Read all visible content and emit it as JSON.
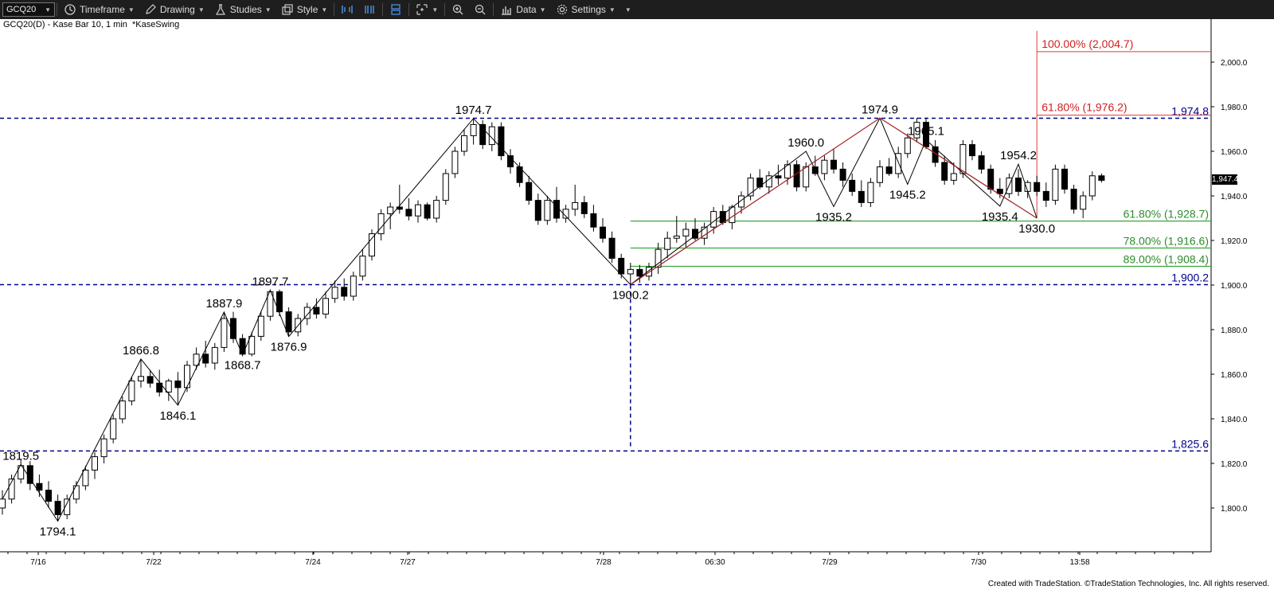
{
  "toolbar": {
    "symbol": "GCQ20",
    "timeframe": "Timeframe",
    "drawing": "Drawing",
    "studies": "Studies",
    "style": "Style",
    "data": "Data",
    "settings": "Settings"
  },
  "subtitle": {
    "symbol_desc": "GCQ20(D) - Kase Bar 10, 1 min",
    "study": "*KaseSwing"
  },
  "footer": "Created with TradeStation. ©TradeStation Technologies, Inc. All rights reserved.",
  "colors": {
    "up": "#ffffff",
    "down": "#000000",
    "level_line": "#00008b",
    "fib_green": "#3aa53a",
    "fib_red": "#e03c3c",
    "swing_line": "#000000",
    "swing_red": "#a01e1e"
  },
  "chart_data": {
    "type": "candlestick",
    "y_axis": {
      "min": 1786,
      "max": 2014,
      "ticks": [
        "1,800.0",
        "1,820.0",
        "1,840.0",
        "1,860.0",
        "1,880.0",
        "1,900.0",
        "1,920.0",
        "1,940.0",
        "1,960.0",
        "1,980.0",
        "2,000.0"
      ]
    },
    "x_ticks": [
      "7/16",
      "7/22",
      "7/24",
      "7/27",
      "7/28",
      "06:30",
      "7/29",
      "7/30",
      "13:58"
    ],
    "last_price": "1,947.4",
    "bars": [
      [
        1800,
        1808,
        1797,
        1804
      ],
      [
        1804,
        1815,
        1802,
        1813
      ],
      [
        1813,
        1822,
        1811,
        1819
      ],
      [
        1819,
        1821,
        1808,
        1811
      ],
      [
        1811,
        1815,
        1805,
        1808
      ],
      [
        1808,
        1812,
        1800,
        1803
      ],
      [
        1803,
        1806,
        1794,
        1797
      ],
      [
        1797,
        1806,
        1795,
        1804
      ],
      [
        1804,
        1812,
        1802,
        1810
      ],
      [
        1810,
        1819,
        1808,
        1817
      ],
      [
        1817,
        1825,
        1813,
        1823
      ],
      [
        1823,
        1833,
        1820,
        1831
      ],
      [
        1831,
        1842,
        1829,
        1840
      ],
      [
        1840,
        1850,
        1838,
        1848
      ],
      [
        1848,
        1859,
        1846,
        1857
      ],
      [
        1857,
        1867,
        1854,
        1859
      ],
      [
        1859,
        1862,
        1854,
        1856
      ],
      [
        1856,
        1862,
        1850,
        1852
      ],
      [
        1852,
        1858,
        1848,
        1857
      ],
      [
        1857,
        1861,
        1846,
        1854
      ],
      [
        1854,
        1866,
        1852,
        1864
      ],
      [
        1864,
        1872,
        1862,
        1869
      ],
      [
        1869,
        1875,
        1863,
        1865
      ],
      [
        1865,
        1874,
        1862,
        1872
      ],
      [
        1872,
        1888,
        1870,
        1885
      ],
      [
        1885,
        1888,
        1874,
        1876
      ],
      [
        1876,
        1878,
        1868,
        1869
      ],
      [
        1869,
        1879,
        1868,
        1877
      ],
      [
        1877,
        1888,
        1875,
        1886
      ],
      [
        1886,
        1898,
        1884,
        1897
      ],
      [
        1897,
        1898,
        1886,
        1888
      ],
      [
        1888,
        1890,
        1877,
        1879
      ],
      [
        1879,
        1887,
        1877,
        1885
      ],
      [
        1885,
        1892,
        1882,
        1890
      ],
      [
        1890,
        1894,
        1885,
        1887
      ],
      [
        1887,
        1897,
        1885,
        1894
      ],
      [
        1894,
        1902,
        1892,
        1899
      ],
      [
        1899,
        1903,
        1893,
        1895
      ],
      [
        1895,
        1906,
        1893,
        1904
      ],
      [
        1904,
        1916,
        1902,
        1913
      ],
      [
        1913,
        1925,
        1911,
        1923
      ],
      [
        1923,
        1934,
        1920,
        1932
      ],
      [
        1932,
        1937,
        1925,
        1935
      ],
      [
        1935,
        1945,
        1932,
        1934
      ],
      [
        1934,
        1939,
        1929,
        1931
      ],
      [
        1931,
        1938,
        1928,
        1936
      ],
      [
        1936,
        1937,
        1929,
        1930
      ],
      [
        1930,
        1940,
        1928,
        1938
      ],
      [
        1938,
        1952,
        1936,
        1950
      ],
      [
        1950,
        1962,
        1948,
        1960
      ],
      [
        1960,
        1970,
        1958,
        1967
      ],
      [
        1967,
        1975,
        1963,
        1972
      ],
      [
        1972,
        1974,
        1961,
        1963
      ],
      [
        1963,
        1973,
        1960,
        1971
      ],
      [
        1971,
        1973,
        1956,
        1958
      ],
      [
        1958,
        1961,
        1950,
        1953
      ],
      [
        1953,
        1955,
        1944,
        1946
      ],
      [
        1946,
        1949,
        1936,
        1938
      ],
      [
        1938,
        1941,
        1927,
        1929
      ],
      [
        1929,
        1940,
        1927,
        1938
      ],
      [
        1938,
        1944,
        1928,
        1930
      ],
      [
        1930,
        1936,
        1928,
        1934
      ],
      [
        1934,
        1945,
        1931,
        1937
      ],
      [
        1937,
        1940,
        1930,
        1932
      ],
      [
        1932,
        1936,
        1924,
        1926
      ],
      [
        1926,
        1930,
        1919,
        1921
      ],
      [
        1921,
        1924,
        1910,
        1912
      ],
      [
        1912,
        1914,
        1903,
        1905
      ],
      [
        1905,
        1910,
        1900,
        1907
      ],
      [
        1907,
        1909,
        1901,
        1904
      ],
      [
        1904,
        1910,
        1902,
        1908
      ],
      [
        1908,
        1919,
        1905,
        1916
      ],
      [
        1916,
        1924,
        1912,
        1921
      ],
      [
        1921,
        1931,
        1919,
        1922
      ],
      [
        1922,
        1928,
        1917,
        1925
      ],
      [
        1925,
        1930,
        1920,
        1921
      ],
      [
        1921,
        1928,
        1918,
        1926
      ],
      [
        1926,
        1935,
        1923,
        1933
      ],
      [
        1933,
        1936,
        1927,
        1928
      ],
      [
        1928,
        1936,
        1925,
        1935
      ],
      [
        1935,
        1942,
        1932,
        1940
      ],
      [
        1940,
        1950,
        1938,
        1948
      ],
      [
        1948,
        1952,
        1943,
        1944
      ],
      [
        1944,
        1951,
        1941,
        1949
      ],
      [
        1949,
        1954,
        1945,
        1948
      ],
      [
        1948,
        1956,
        1945,
        1954
      ],
      [
        1954,
        1956,
        1942,
        1944
      ],
      [
        1944,
        1955,
        1942,
        1953
      ],
      [
        1953,
        1958,
        1949,
        1950
      ],
      [
        1950,
        1958,
        1947,
        1956
      ],
      [
        1956,
        1961,
        1950,
        1952
      ],
      [
        1952,
        1955,
        1944,
        1947
      ],
      [
        1947,
        1950,
        1940,
        1942
      ],
      [
        1942,
        1947,
        1935,
        1937
      ],
      [
        1937,
        1948,
        1935,
        1946
      ],
      [
        1946,
        1956,
        1944,
        1953
      ],
      [
        1953,
        1957,
        1949,
        1950
      ],
      [
        1950,
        1962,
        1948,
        1959
      ],
      [
        1959,
        1968,
        1957,
        1966
      ],
      [
        1966,
        1975,
        1964,
        1973
      ],
      [
        1973,
        1975,
        1961,
        1962
      ],
      [
        1962,
        1965,
        1953,
        1955
      ],
      [
        1955,
        1958,
        1945,
        1947
      ],
      [
        1947,
        1955,
        1945,
        1950
      ],
      [
        1950,
        1965,
        1948,
        1963
      ],
      [
        1963,
        1965,
        1956,
        1958
      ],
      [
        1958,
        1960,
        1950,
        1952
      ],
      [
        1952,
        1954,
        1941,
        1943
      ],
      [
        1943,
        1948,
        1939,
        1941
      ],
      [
        1941,
        1950,
        1939,
        1948
      ],
      [
        1948,
        1952,
        1940,
        1942
      ],
      [
        1942,
        1947,
        1939,
        1946
      ],
      [
        1946,
        1949,
        1940,
        1942
      ],
      [
        1942,
        1946,
        1935,
        1938
      ],
      [
        1938,
        1954,
        1936,
        1952
      ],
      [
        1952,
        1954,
        1941,
        1943
      ],
      [
        1943,
        1945,
        1932,
        1934
      ],
      [
        1934,
        1942,
        1930,
        1940
      ],
      [
        1940,
        1951,
        1938,
        1949
      ],
      [
        1949,
        1950,
        1946,
        1947
      ]
    ],
    "horizontal_levels": [
      {
        "value": 1974.8,
        "label": "1,974.8"
      },
      {
        "value": 1900.2,
        "label": "1,900.2"
      },
      {
        "value": 1825.6,
        "label": "1,825.6"
      }
    ],
    "fib_green": [
      {
        "value": 1928.7,
        "label": "61.80% (1,928.7)"
      },
      {
        "value": 1916.6,
        "label": "78.00% (1,916.6)"
      },
      {
        "value": 1908.4,
        "label": "89.00% (1,908.4)"
      }
    ],
    "fib_red": [
      {
        "value": 2004.7,
        "label": "100.00% (2,004.7)"
      },
      {
        "value": 1976.2,
        "label": "61.80% (1,976.2)"
      }
    ],
    "swing_labels": [
      {
        "bar": 2,
        "value": 1819.5,
        "text": "1819.5",
        "pos": "above"
      },
      {
        "bar": 6,
        "value": 1794.1,
        "text": "1794.1",
        "pos": "below"
      },
      {
        "bar": 15,
        "value": 1866.8,
        "text": "1866.8",
        "pos": "above"
      },
      {
        "bar": 19,
        "value": 1846.1,
        "text": "1846.1",
        "pos": "below"
      },
      {
        "bar": 24,
        "value": 1887.9,
        "text": "1887.9",
        "pos": "above"
      },
      {
        "bar": 26,
        "value": 1868.7,
        "text": "1868.7",
        "pos": "below"
      },
      {
        "bar": 29,
        "value": 1897.7,
        "text": "1897.7",
        "pos": "above"
      },
      {
        "bar": 31,
        "value": 1876.9,
        "text": "1876.9",
        "pos": "below"
      },
      {
        "bar": 51,
        "value": 1974.7,
        "text": "1974.7",
        "pos": "above"
      },
      {
        "bar": 68,
        "value": 1900.2,
        "text": "1900.2",
        "pos": "below"
      },
      {
        "bar": 87,
        "value": 1960.0,
        "text": "1960.0",
        "pos": "above"
      },
      {
        "bar": 90,
        "value": 1935.2,
        "text": "1935.2",
        "pos": "below"
      },
      {
        "bar": 95,
        "value": 1974.9,
        "text": "1974.9",
        "pos": "above"
      },
      {
        "bar": 98,
        "value": 1945.2,
        "text": "1945.2",
        "pos": "below"
      },
      {
        "bar": 100,
        "value": 1965.1,
        "text": "1965.1",
        "pos": "above"
      },
      {
        "bar": 108,
        "value": 1935.4,
        "text": "1935.4",
        "pos": "below"
      },
      {
        "bar": 110,
        "value": 1954.2,
        "text": "1954.2",
        "pos": "above"
      },
      {
        "bar": 112,
        "value": 1930.0,
        "text": "1930.0",
        "pos": "below"
      }
    ],
    "swing_path": [
      [
        0,
        1804
      ],
      [
        2,
        1819.5
      ],
      [
        6,
        1794.1
      ],
      [
        15,
        1866.8
      ],
      [
        19,
        1846.1
      ],
      [
        24,
        1887.9
      ],
      [
        26,
        1868.7
      ],
      [
        29,
        1897.7
      ],
      [
        31,
        1876.9
      ],
      [
        51,
        1974.7
      ],
      [
        68,
        1900.2
      ],
      [
        87,
        1960.0
      ],
      [
        90,
        1935.2
      ],
      [
        95,
        1974.9
      ],
      [
        98,
        1945.2
      ],
      [
        100,
        1965.1
      ],
      [
        108,
        1935.4
      ],
      [
        110,
        1954.2
      ],
      [
        112,
        1930.0
      ]
    ],
    "swing_red_path": [
      [
        68,
        1900.2
      ],
      [
        95,
        1974.9
      ],
      [
        112,
        1930.0
      ]
    ]
  }
}
